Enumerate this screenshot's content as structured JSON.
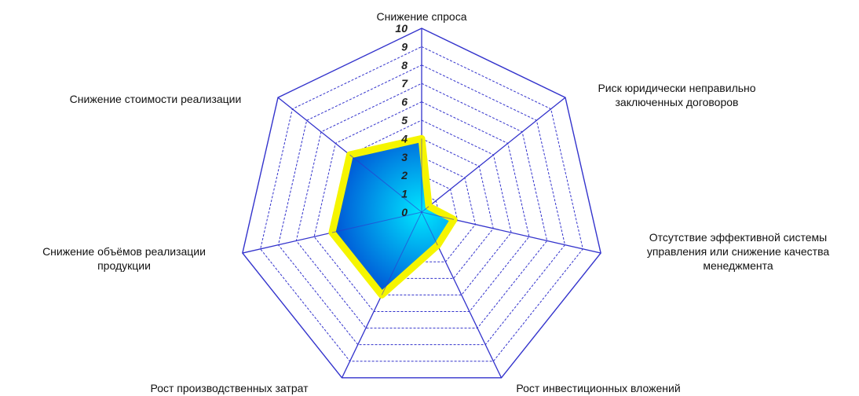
{
  "chart_data": {
    "type": "radar",
    "axes": [
      {
        "label": [
          "Снижение спроса"
        ],
        "value": 4
      },
      {
        "label": [
          "Риск юридически неправильно",
          "заключенных договоров"
        ],
        "value": 0.5
      },
      {
        "label": [
          "Отсутствие эффективной системы",
          "управления или снижение качества",
          "менеджмента"
        ],
        "value": 1.8
      },
      {
        "label": [
          "Рост инвестиционных вложений"
        ],
        "value": 2
      },
      {
        "label": [
          "Рост производственных затрат"
        ],
        "value": 5
      },
      {
        "label": [
          "Снижение объёмов реализации",
          "продукции"
        ],
        "value": 5
      },
      {
        "label": [
          "Снижение стоимости реализации"
        ],
        "value": 5
      }
    ],
    "ticks": [
      "0",
      "1",
      "2",
      "3",
      "4",
      "5",
      "6",
      "7",
      "8",
      "9",
      "10"
    ],
    "rmin": 0,
    "rmax": 10,
    "colors": {
      "grid": "#3333cc",
      "fill_center": "#00e6ff",
      "fill_edge": "#0033cc",
      "outline": "#f5f500"
    }
  }
}
